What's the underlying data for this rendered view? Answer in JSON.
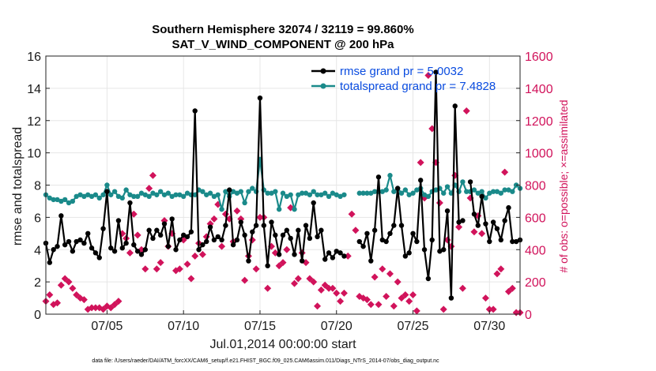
{
  "chart_data": {
    "type": "line",
    "title": "Southern Hemisphere 32074 / 32119 = 99.860%",
    "subtitle": "SAT_V_WIND_COMPONENT @ 200 hPa",
    "xlabel": "Jul.01,2014 00:00:00 start",
    "ylabel": "rmse and totalspread",
    "y2label": "# of obs: o=possible; ×=assimilated",
    "xlim": [
      1,
      32
    ],
    "ylim": [
      0,
      16
    ],
    "y2lim": [
      0,
      1600
    ],
    "xticks": [
      {
        "v": 5,
        "label": "07/05"
      },
      {
        "v": 10,
        "label": "07/10"
      },
      {
        "v": 15,
        "label": "07/15"
      },
      {
        "v": 20,
        "label": "07/20"
      },
      {
        "v": 25,
        "label": "07/25"
      },
      {
        "v": 30,
        "label": "07/30"
      }
    ],
    "yticks": [
      0,
      2,
      4,
      6,
      8,
      10,
      12,
      14,
      16
    ],
    "y2ticks": [
      0,
      200,
      400,
      600,
      800,
      1000,
      1200,
      1400,
      1600
    ],
    "legend_position": "top-right",
    "series": [
      {
        "name": "rmse grand pr = 5.0032",
        "color": "#000000",
        "axis": "left",
        "x": [
          1,
          1.25,
          1.5,
          1.75,
          2,
          2.25,
          2.5,
          2.75,
          3,
          3.25,
          3.5,
          3.75,
          4,
          4.25,
          4.5,
          4.75,
          5,
          5.25,
          5.5,
          5.75,
          6,
          6.25,
          6.5,
          6.75,
          7,
          7.25,
          7.5,
          7.75,
          8,
          8.25,
          8.5,
          8.75,
          9,
          9.25,
          9.5,
          9.75,
          10,
          10.25,
          10.5,
          10.75,
          11,
          11.25,
          11.5,
          11.75,
          12,
          12.25,
          12.5,
          12.75,
          13,
          13.25,
          13.5,
          13.75,
          14,
          14.25,
          14.5,
          14.75,
          15,
          15.25,
          15.5,
          15.75,
          16,
          16.25,
          16.5,
          16.75,
          17,
          17.25,
          17.5,
          17.75,
          18,
          18.25,
          18.5,
          18.75,
          19,
          19.25,
          19.5,
          19.75,
          20,
          20.25,
          20.5,
          20.75,
          21,
          21.25,
          21.5,
          21.75,
          22,
          22.25,
          22.5,
          22.75,
          23,
          23.25,
          23.5,
          23.75,
          24,
          24.25,
          24.5,
          24.75,
          25,
          25.25,
          25.5,
          25.75,
          26,
          26.25,
          26.5,
          26.75,
          27,
          27.25,
          27.5,
          27.75,
          28,
          28.25,
          28.5,
          28.75,
          29,
          29.25,
          29.5,
          29.75,
          30,
          30.25,
          30.5,
          30.75,
          31,
          31.25,
          31.5,
          31.75,
          32
        ],
        "values": [
          4.4,
          3.2,
          4.0,
          4.2,
          6.1,
          4.3,
          4.5,
          3.9,
          4.5,
          4.6,
          4.4,
          5.0,
          4.1,
          3.8,
          3.5,
          5.3,
          7.6,
          4.1,
          3.9,
          5.8,
          4.1,
          4.4,
          6.9,
          4.3,
          3.9,
          3.7,
          4.0,
          5.2,
          4.7,
          5.2,
          4.9,
          5.6,
          4.2,
          5.9,
          4.0,
          4.6,
          4.9,
          4.8,
          5.1,
          12.6,
          4.0,
          4.3,
          4.5,
          5.4,
          4.6,
          4.8,
          4.6,
          5.5,
          7.7,
          4.3,
          4.6,
          5.7,
          4.9,
          3.3,
          5.1,
          5.5,
          13.4,
          5.5,
          3.0,
          5.7,
          4.9,
          3.7,
          4.9,
          5.2,
          4.7,
          3.7,
          5.2,
          3.3,
          5.5,
          4.7,
          6.9,
          4.8,
          5.2,
          3.4,
          3.8,
          3.5,
          3.9,
          3.8,
          3.6,
          null,
          null,
          null,
          4.5,
          4.2,
          5.0,
          3.3,
          5.2,
          8.5,
          4.6,
          4.5,
          5.0,
          5.5,
          7.8,
          5.5,
          3.6,
          3.8,
          5.0,
          4.5,
          8.3,
          4.0,
          2.2,
          4.6,
          15.0,
          3.9,
          4.0,
          6.4,
          1.0,
          12.9,
          5.7,
          5.8,
          null,
          8.2,
          6.2,
          5.5,
          7.3,
          5.6,
          4.5,
          5.7,
          5.3,
          4.6,
          5.8,
          6.6,
          4.5,
          4.5,
          4.6
        ]
      },
      {
        "name": "totalspread grand pr = 7.4828",
        "color": "#1a8a8a",
        "axis": "left",
        "x": [
          1,
          1.25,
          1.5,
          1.75,
          2,
          2.25,
          2.5,
          2.75,
          3,
          3.25,
          3.5,
          3.75,
          4,
          4.25,
          4.5,
          4.75,
          5,
          5.25,
          5.5,
          5.75,
          6,
          6.25,
          6.5,
          6.75,
          7,
          7.25,
          7.5,
          7.75,
          8,
          8.25,
          8.5,
          8.75,
          9,
          9.25,
          9.5,
          9.75,
          10,
          10.25,
          10.5,
          10.75,
          11,
          11.25,
          11.5,
          11.75,
          12,
          12.25,
          12.5,
          12.75,
          13,
          13.25,
          13.5,
          13.75,
          14,
          14.25,
          14.5,
          14.75,
          15,
          15.25,
          15.5,
          15.75,
          16,
          16.25,
          16.5,
          16.75,
          17,
          17.25,
          17.5,
          17.75,
          18,
          18.25,
          18.5,
          18.75,
          19,
          19.25,
          19.5,
          19.75,
          20,
          20.25,
          20.5,
          20.75,
          21,
          21.25,
          21.5,
          21.75,
          22,
          22.25,
          22.5,
          22.75,
          23,
          23.25,
          23.5,
          23.75,
          24,
          24.25,
          24.5,
          24.75,
          25,
          25.25,
          25.5,
          25.75,
          26,
          26.25,
          26.5,
          26.75,
          27,
          27.25,
          27.5,
          27.75,
          28,
          28.25,
          28.5,
          28.75,
          29,
          29.25,
          29.5,
          29.75,
          30,
          30.25,
          30.5,
          30.75,
          31,
          31.25,
          31.5,
          31.75,
          32
        ],
        "values": [
          7.4,
          7.2,
          7.1,
          7.1,
          7.0,
          7.1,
          6.9,
          7.0,
          7.3,
          7.4,
          7.3,
          7.4,
          7.3,
          7.4,
          7.2,
          7.4,
          8.0,
          7.4,
          7.6,
          7.3,
          7.2,
          7.7,
          7.4,
          7.3,
          7.3,
          7.5,
          7.4,
          7.3,
          7.5,
          7.4,
          7.6,
          7.4,
          7.5,
          7.3,
          7.4,
          7.4,
          7.3,
          7.5,
          7.4,
          7.4,
          7.7,
          7.6,
          7.4,
          7.5,
          7.3,
          7.4,
          6.5,
          7.6,
          7.3,
          7.6,
          7.5,
          7.6,
          6.9,
          7.6,
          7.8,
          7.6,
          9.6,
          7.7,
          7.5,
          7.5,
          7.6,
          6.5,
          7.5,
          7.3,
          7.4,
          6.5,
          7.4,
          7.5,
          7.5,
          7.4,
          7.6,
          7.4,
          7.4,
          7.5,
          7.3,
          7.5,
          7.4,
          7.3,
          7.4,
          null,
          null,
          null,
          7.5,
          7.5,
          7.5,
          7.5,
          7.6,
          7.6,
          7.6,
          7.7,
          8.6,
          7.6,
          7.8,
          7.5,
          7.7,
          7.4,
          7.5,
          7.7,
          7.8,
          7.4,
          7.3,
          7.6,
          7.7,
          7.8,
          7.5,
          7.9,
          7.5,
          8.0,
          7.6,
          8.2,
          7.6,
          7.6,
          7.7,
          7.5,
          7.6,
          7.2,
          7.5,
          7.6,
          7.6,
          7.5,
          7.7,
          7.7,
          7.6,
          8.0,
          7.8
        ]
      },
      {
        "name": "# of obs (assimilated)",
        "color": "#d1135b",
        "axis": "right",
        "marker": "x",
        "x": [
          1,
          1.25,
          1.5,
          1.75,
          2,
          2.25,
          2.5,
          2.75,
          3,
          3.25,
          3.5,
          3.75,
          4,
          4.25,
          4.5,
          4.75,
          5,
          5.25,
          5.5,
          5.75,
          6,
          6.25,
          6.5,
          6.75,
          7,
          7.25,
          7.5,
          7.75,
          8,
          8.25,
          8.5,
          8.75,
          9,
          9.25,
          9.5,
          9.75,
          10,
          10.25,
          10.5,
          10.75,
          11,
          11.25,
          11.5,
          11.75,
          12,
          12.25,
          12.5,
          12.75,
          13,
          13.25,
          13.5,
          13.75,
          14,
          14.25,
          14.5,
          14.75,
          15,
          15.25,
          15.5,
          15.75,
          16,
          16.25,
          16.5,
          16.75,
          17,
          17.25,
          17.5,
          17.75,
          18,
          18.25,
          18.5,
          18.75,
          19,
          19.25,
          19.5,
          19.75,
          20,
          20.25,
          20.5,
          20.75,
          21,
          21.25,
          21.5,
          21.75,
          22,
          22.25,
          22.5,
          22.75,
          23,
          23.25,
          23.5,
          23.75,
          24,
          24.25,
          24.5,
          24.75,
          25,
          25.25,
          25.5,
          25.75,
          26,
          26.25,
          26.5,
          26.75,
          27,
          27.25,
          27.5,
          27.75,
          28,
          28.25,
          28.5,
          28.75,
          29,
          29.25,
          29.5,
          29.75,
          30,
          30.25,
          30.5,
          30.75,
          31,
          31.25,
          31.5,
          31.75,
          32
        ],
        "values": [
          80,
          120,
          60,
          70,
          180,
          220,
          200,
          160,
          120,
          100,
          90,
          30,
          40,
          40,
          40,
          30,
          50,
          40,
          60,
          80,
          500,
          470,
          380,
          620,
          490,
          400,
          280,
          780,
          860,
          280,
          320,
          580,
          420,
          500,
          270,
          280,
          460,
          310,
          220,
          360,
          440,
          370,
          480,
          560,
          590,
          680,
          420,
          620,
          590,
          450,
          640,
          590,
          210,
          360,
          460,
          280,
          600,
          600,
          160,
          420,
          380,
          300,
          320,
          400,
          660,
          190,
          220,
          380,
          320,
          220,
          200,
          50,
          150,
          180,
          160,
          160,
          130,
          80,
          130,
          360,
          620,
          520,
          110,
          100,
          90,
          60,
          230,
          60,
          280,
          110,
          250,
          50,
          200,
          100,
          120,
          80,
          120,
          20,
          940,
          720,
          1480,
          1150,
          940,
          690,
          30,
          460,
          420,
          860,
          540,
          160,
          1260,
          720,
          510,
          610,
          500,
          100,
          30,
          30,
          250,
          280,
          880,
          140,
          160,
          10,
          10
        ]
      }
    ]
  },
  "footer": "data file: /Users/raeder/DAI/ATM_forcXX/CAM6_setup/f.e21.FHIST_BGC.f09_025.CAM6assim.011/Diags_NTrS_2014-07/obs_diag_output.nc"
}
